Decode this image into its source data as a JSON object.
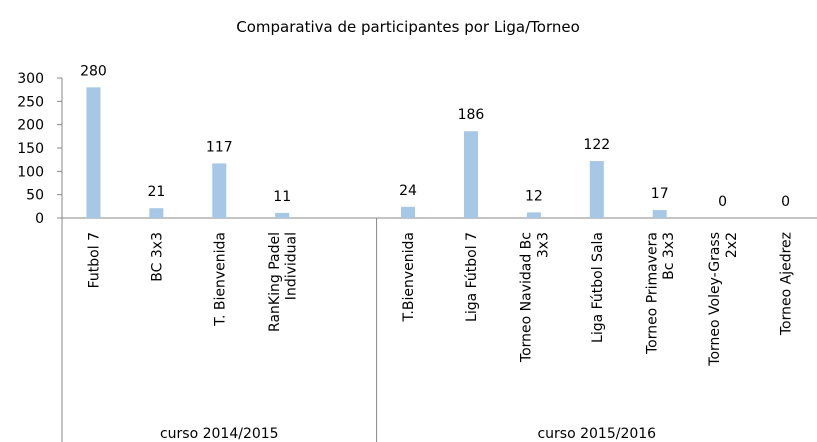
{
  "chart_data": {
    "type": "bar",
    "title": "Comparativa de participantes por Liga/Torneo",
    "color": "#a7c7e7",
    "ylim": [
      0,
      300
    ],
    "yticks": [
      0,
      50,
      100,
      150,
      200,
      250,
      300
    ],
    "groups": [
      {
        "name": "curso 2014/2015",
        "categories": [
          "Futbol 7",
          "BC 3x3",
          "T. Bienvenida",
          "RanKing Padel\nIndividual",
          null
        ],
        "values": [
          280,
          21,
          117,
          11,
          null
        ]
      },
      {
        "name": "curso 2015/2016",
        "categories": [
          "T.Bienvenida",
          "Liga Fútbol 7",
          "Torneo Navidad Bc\n3x3",
          "Liga Fútbol Sala",
          "Torneo Primavera\nBc 3x3",
          "Torneo Voley-Grass\n2x2",
          "Torneo Ajedrez"
        ],
        "values": [
          24,
          186,
          12,
          122,
          17,
          0,
          0
        ]
      }
    ]
  }
}
